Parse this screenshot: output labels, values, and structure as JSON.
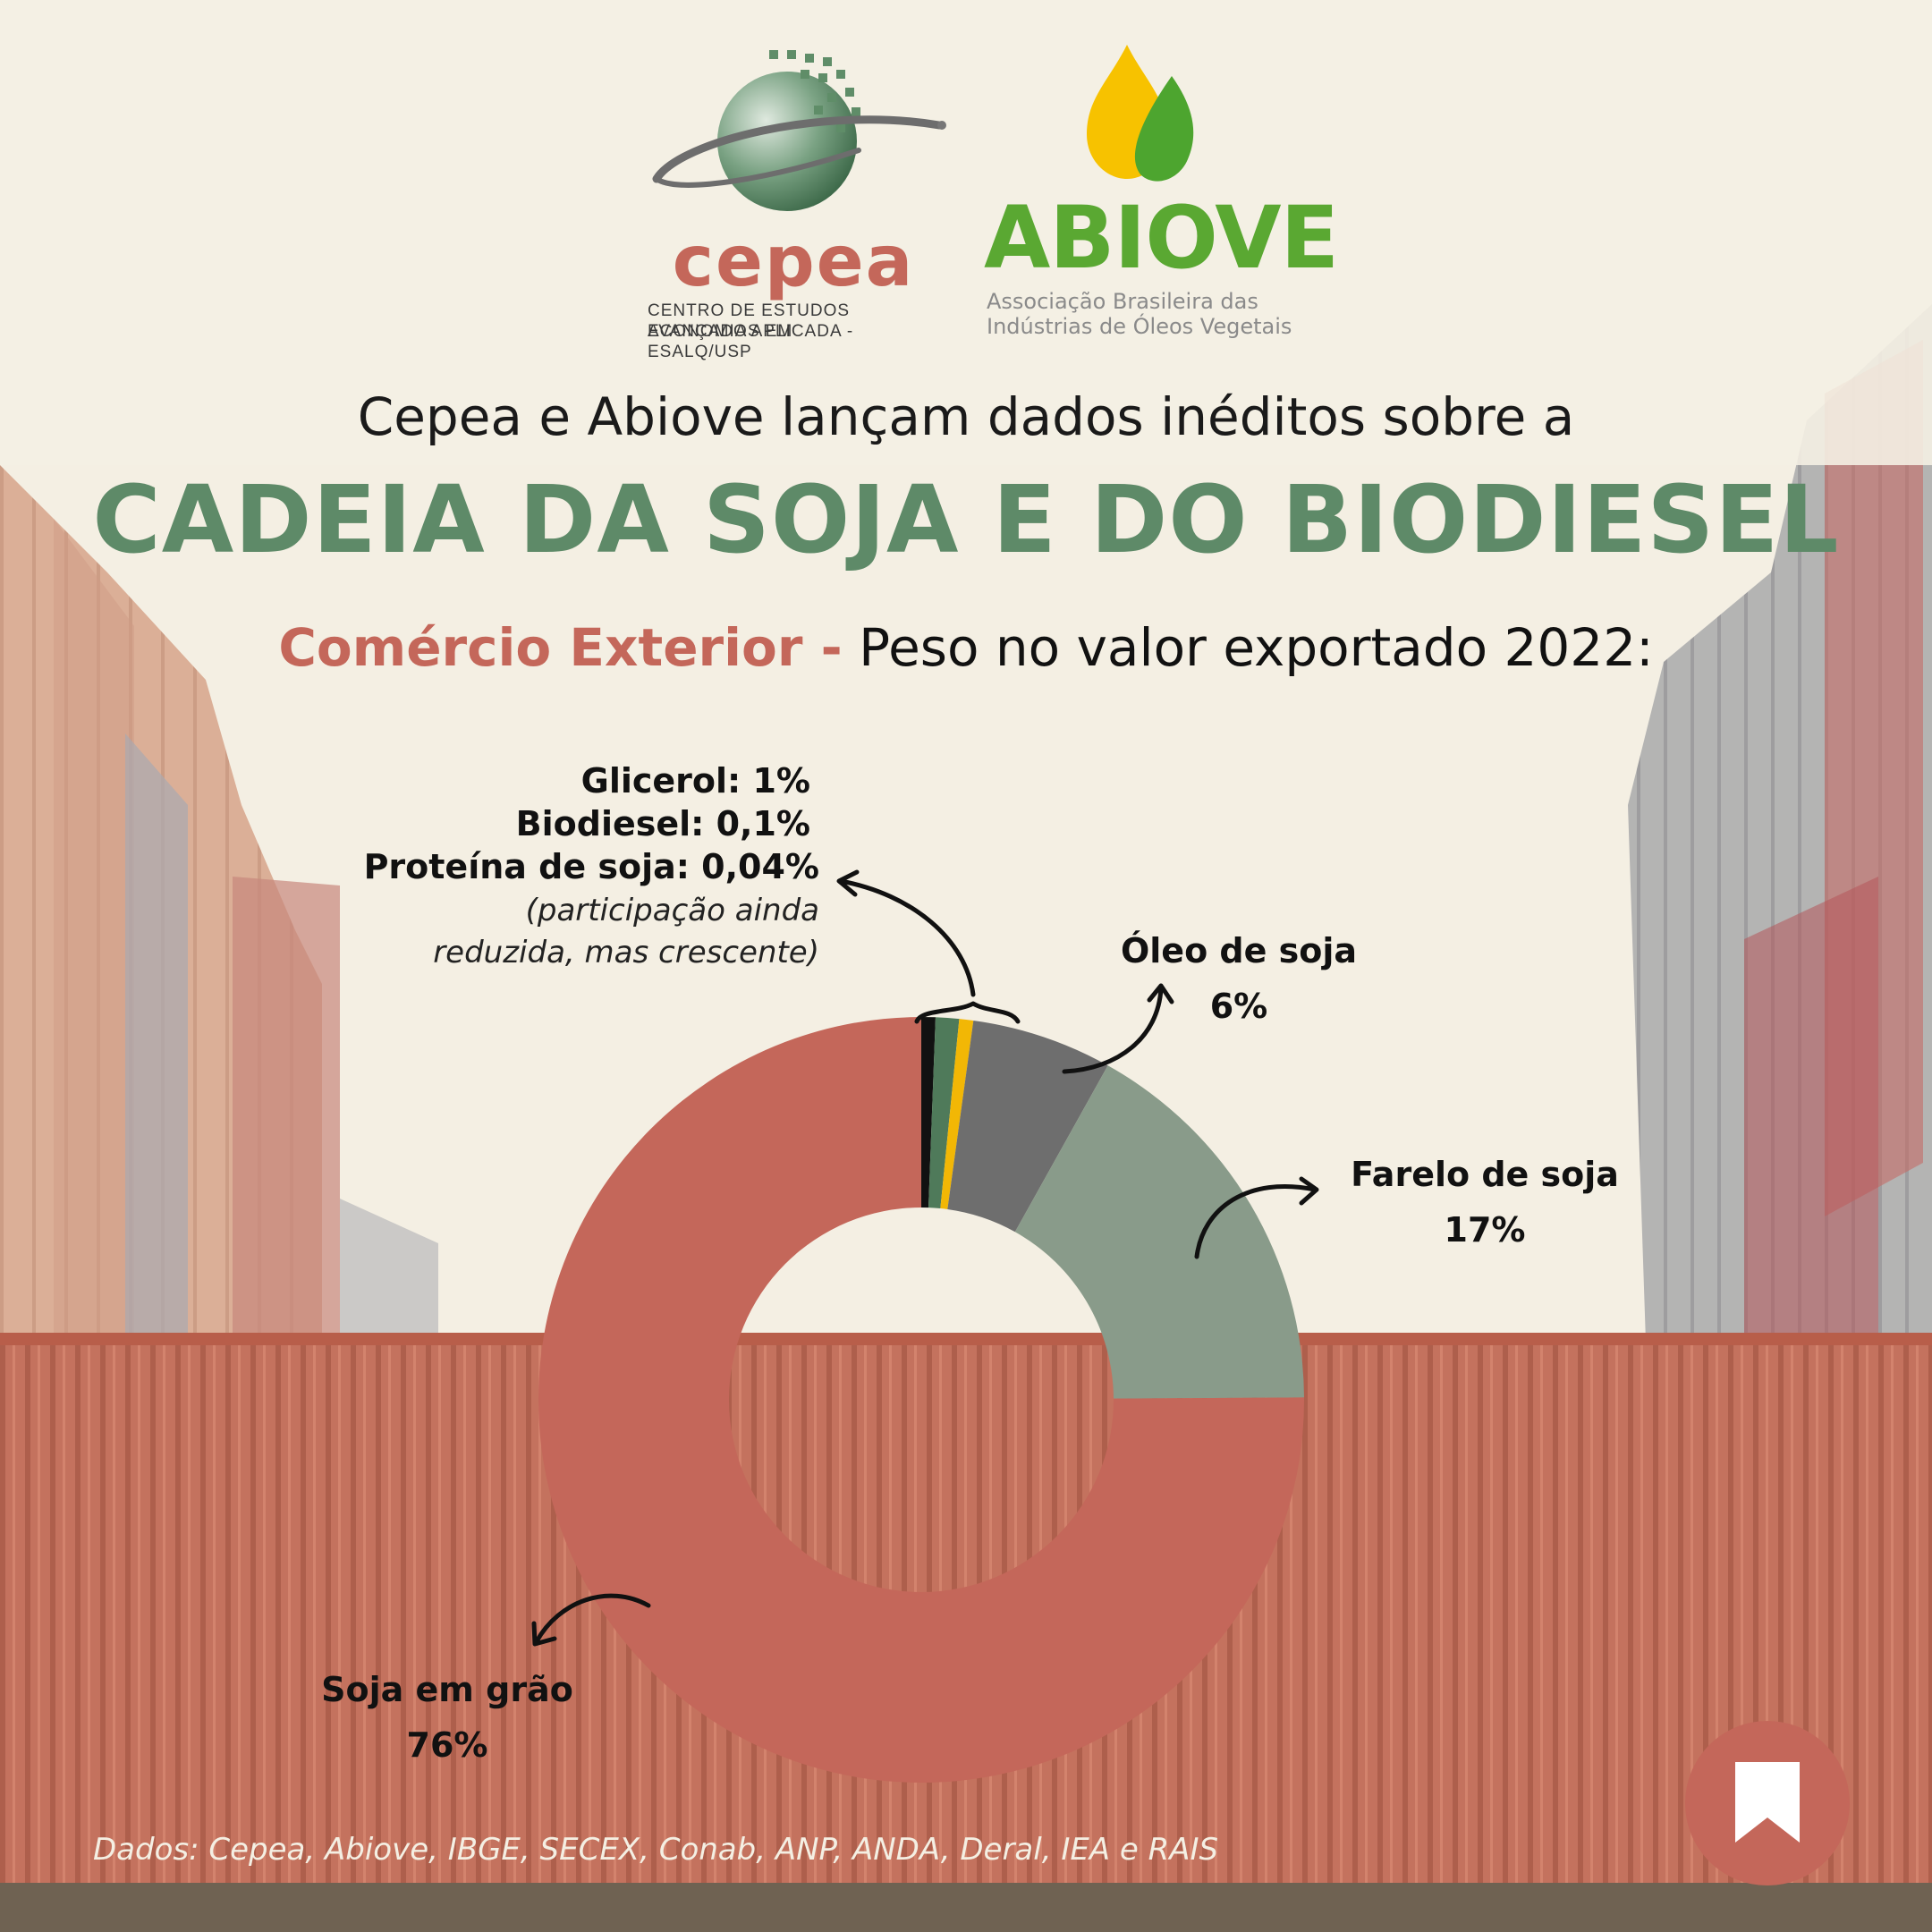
{
  "header": {
    "cepea_logo_text": "cepea",
    "cepea_sub_line1": "CENTRO DE ESTUDOS AVANÇADOS EM",
    "cepea_sub_line2": "ECONOMIA APLICADA - ESALQ/USP",
    "abiove_logo_text": "ABIOVE",
    "abiove_sub_line1": "Associação Brasileira das",
    "abiove_sub_line2": "Indústrias de Óleos Vegetais"
  },
  "subtitle": "Cepea e Abiove lançam dados inéditos sobre a",
  "title": "CADEIA DA SOJA E DO BIODIESEL",
  "section": {
    "accent": "Comércio Exterior -",
    "rest": " Peso no valor exportado 2022:"
  },
  "labels": {
    "small_line1": "Glicerol: 1%",
    "small_line2": "Biodiesel: 0,1%",
    "small_line3": "Proteína de soja: 0,04%",
    "small_note1": "(participação ainda",
    "small_note2": "reduzida, mas crescente)",
    "oleo_name": "Óleo de soja",
    "oleo_value": "6%",
    "farelo_name": "Farelo de soja",
    "farelo_value": "17%",
    "graos_name": "Soja em grão",
    "graos_value": "76%"
  },
  "source": "Dados: Cepea, Abiove, IBGE, SECEX, Conab, ANP, ANDA, Deral, IEA e RAIS",
  "colors": {
    "accent": "#c4675a",
    "title_green": "#5e8a68",
    "bookmark": "#c4675a"
  },
  "chart_data": {
    "type": "pie",
    "title": "Peso no valor exportado 2022",
    "series": [
      {
        "name": "Proteína de soja",
        "value": 0.04,
        "color": "#111111"
      },
      {
        "name": "Glicerol",
        "value": 1,
        "color": "#4f7a5a"
      },
      {
        "name": "Biodiesel",
        "value": 0.1,
        "color": "#f2b705"
      },
      {
        "name": "Óleo de soja",
        "value": 6,
        "color": "#6e6e6e"
      },
      {
        "name": "Farelo de soja",
        "value": 17,
        "color": "#899b8a"
      },
      {
        "name": "Soja em grão",
        "value": 76,
        "color": "#c4675a"
      }
    ],
    "donut": true
  }
}
